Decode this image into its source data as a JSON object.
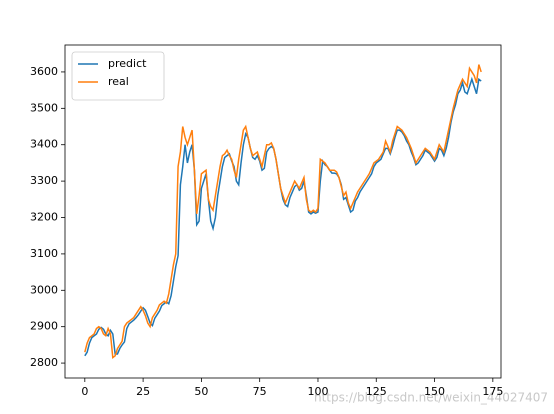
{
  "chart_data": {
    "type": "line",
    "x": [
      0,
      1,
      2,
      3,
      4,
      5,
      6,
      7,
      8,
      9,
      10,
      11,
      12,
      13,
      14,
      15,
      16,
      17,
      18,
      19,
      20,
      21,
      22,
      23,
      24,
      25,
      26,
      27,
      28,
      29,
      30,
      31,
      32,
      33,
      34,
      35,
      36,
      37,
      38,
      39,
      40,
      41,
      42,
      43,
      44,
      45,
      46,
      47,
      48,
      49,
      50,
      51,
      52,
      53,
      54,
      55,
      56,
      57,
      58,
      59,
      60,
      61,
      62,
      63,
      64,
      65,
      66,
      67,
      68,
      69,
      70,
      71,
      72,
      73,
      74,
      75,
      76,
      77,
      78,
      79,
      80,
      81,
      82,
      83,
      84,
      85,
      86,
      87,
      88,
      89,
      90,
      91,
      92,
      93,
      94,
      95,
      96,
      97,
      98,
      99,
      100,
      101,
      102,
      103,
      104,
      105,
      106,
      107,
      108,
      109,
      110,
      111,
      112,
      113,
      114,
      115,
      116,
      117,
      118,
      119,
      120,
      121,
      122,
      123,
      124,
      125,
      126,
      127,
      128,
      129,
      130,
      131,
      132,
      133,
      134,
      135,
      136,
      137,
      138,
      139,
      140,
      141,
      142,
      143,
      144,
      145,
      146,
      147,
      148,
      149,
      150,
      151,
      152,
      153,
      154,
      155,
      156,
      157,
      158,
      159,
      160,
      161,
      162,
      163,
      164,
      165,
      166,
      167,
      168,
      169,
      170
    ],
    "series": [
      {
        "name": "predict",
        "color": "#1f77b4",
        "values": [
          2820,
          2830,
          2855,
          2870,
          2875,
          2880,
          2893,
          2898,
          2893,
          2880,
          2875,
          2890,
          2880,
          2825,
          2825,
          2840,
          2850,
          2858,
          2895,
          2908,
          2913,
          2918,
          2925,
          2933,
          2943,
          2952,
          2945,
          2928,
          2910,
          2903,
          2923,
          2933,
          2943,
          2958,
          2963,
          2968,
          2963,
          2985,
          3025,
          3065,
          3095,
          3290,
          3340,
          3400,
          3350,
          3380,
          3400,
          3330,
          3180,
          3190,
          3280,
          3300,
          3320,
          3250,
          3190,
          3170,
          3200,
          3260,
          3300,
          3340,
          3365,
          3370,
          3375,
          3355,
          3340,
          3300,
          3290,
          3350,
          3400,
          3430,
          3420,
          3390,
          3365,
          3360,
          3370,
          3355,
          3330,
          3335,
          3380,
          3390,
          3395,
          3390,
          3360,
          3320,
          3280,
          3250,
          3235,
          3230,
          3255,
          3270,
          3285,
          3290,
          3275,
          3280,
          3300,
          3260,
          3215,
          3210,
          3215,
          3212,
          3215,
          3300,
          3355,
          3345,
          3340,
          3330,
          3322,
          3322,
          3320,
          3310,
          3290,
          3250,
          3255,
          3235,
          3215,
          3220,
          3245,
          3255,
          3270,
          3280,
          3290,
          3300,
          3310,
          3320,
          3340,
          3350,
          3355,
          3360,
          3375,
          3390,
          3390,
          3375,
          3395,
          3420,
          3440,
          3440,
          3435,
          3425,
          3410,
          3400,
          3380,
          3365,
          3345,
          3350,
          3360,
          3370,
          3385,
          3380,
          3375,
          3365,
          3355,
          3365,
          3390,
          3385,
          3370,
          3390,
          3420,
          3460,
          3490,
          3510,
          3540,
          3550,
          3570,
          3545,
          3540,
          3560,
          3580,
          3560,
          3540,
          3580,
          3575
        ]
      },
      {
        "name": "real",
        "color": "#ff7f0e",
        "values": [
          2830,
          2855,
          2870,
          2875,
          2880,
          2895,
          2900,
          2895,
          2880,
          2875,
          2895,
          2880,
          2815,
          2820,
          2840,
          2850,
          2860,
          2900,
          2910,
          2915,
          2920,
          2925,
          2935,
          2945,
          2955,
          2945,
          2930,
          2910,
          2900,
          2925,
          2935,
          2945,
          2960,
          2965,
          2970,
          2965,
          2990,
          3030,
          3070,
          3100,
          3340,
          3380,
          3450,
          3420,
          3400,
          3420,
          3440,
          3330,
          3210,
          3260,
          3320,
          3325,
          3330,
          3250,
          3230,
          3220,
          3260,
          3300,
          3340,
          3370,
          3375,
          3385,
          3370,
          3360,
          3330,
          3310,
          3360,
          3400,
          3440,
          3450,
          3420,
          3390,
          3370,
          3375,
          3380,
          3360,
          3340,
          3370,
          3400,
          3400,
          3405,
          3390,
          3360,
          3320,
          3280,
          3260,
          3240,
          3255,
          3270,
          3285,
          3300,
          3290,
          3280,
          3295,
          3310,
          3250,
          3220,
          3215,
          3220,
          3215,
          3225,
          3360,
          3355,
          3350,
          3340,
          3330,
          3330,
          3330,
          3325,
          3310,
          3285,
          3260,
          3270,
          3240,
          3225,
          3240,
          3255,
          3270,
          3280,
          3290,
          3300,
          3310,
          3320,
          3335,
          3350,
          3355,
          3360,
          3370,
          3380,
          3410,
          3395,
          3380,
          3410,
          3430,
          3450,
          3445,
          3440,
          3430,
          3420,
          3405,
          3390,
          3370,
          3350,
          3360,
          3370,
          3380,
          3390,
          3385,
          3380,
          3370,
          3360,
          3380,
          3400,
          3390,
          3380,
          3410,
          3440,
          3470,
          3500,
          3525,
          3550,
          3565,
          3580,
          3570,
          3560,
          3610,
          3600,
          3590,
          3570,
          3620,
          3600
        ]
      }
    ],
    "xlim": [
      -8.5,
      178.5
    ],
    "xticks": [
      0,
      25,
      50,
      75,
      100,
      125,
      150,
      175
    ],
    "ylim": [
      2759,
      3674
    ],
    "yticks": [
      2800,
      2900,
      3000,
      3100,
      3200,
      3300,
      3400,
      3500,
      3600
    ],
    "legend": "upper left",
    "watermark": "https://blog.csdn.net/weixin_44027407"
  }
}
